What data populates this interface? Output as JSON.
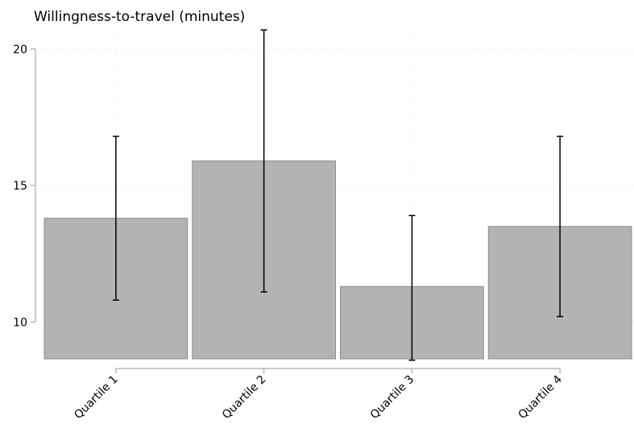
{
  "chart_data": {
    "type": "bar",
    "title": "Willingness-to-travel (minutes)",
    "xlabel": "",
    "ylabel": "",
    "categories": [
      "Quartile 1",
      "Quartile 2",
      "Quartile 3",
      "Quartile 4"
    ],
    "values": [
      13.8,
      15.9,
      11.3,
      13.5
    ],
    "error_low": [
      10.8,
      11.1,
      8.6,
      10.2
    ],
    "error_high": [
      16.8,
      20.7,
      13.9,
      16.8
    ],
    "ylim": [
      8.65,
      21.5
    ],
    "yticks": [
      10,
      15,
      20
    ],
    "ytick_labels": [
      "10",
      "15",
      "20"
    ],
    "grid": true,
    "bar_color": "#b3b3b3",
    "bar_edge_color": "#8c8c8c",
    "error_color": "#000000"
  }
}
